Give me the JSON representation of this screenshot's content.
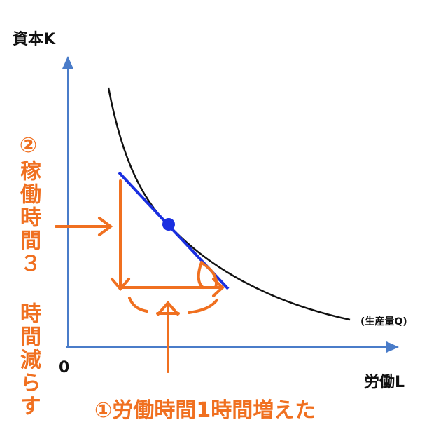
{
  "axes": {
    "y_label": "資本K",
    "x_label": "労働L",
    "origin": "0"
  },
  "curve": {
    "label": "(生産量Q)"
  },
  "annotations": {
    "left": "②稼働時間３ 時間減らす",
    "bottom": "①労働時間1時間増えた"
  }
}
